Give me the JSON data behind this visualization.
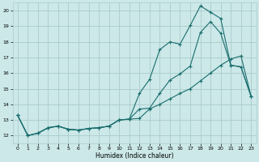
{
  "background_color": "#cce8e8",
  "grid_color": "#aacccc",
  "line_color": "#1a6e6e",
  "xlabel": "Humidex (Indice chaleur)",
  "xlim": [
    -0.5,
    23.5
  ],
  "ylim": [
    11.5,
    20.5
  ],
  "yticks": [
    12,
    13,
    14,
    15,
    16,
    17,
    18,
    19,
    20
  ],
  "xticks": [
    0,
    1,
    2,
    3,
    4,
    5,
    6,
    7,
    8,
    9,
    10,
    11,
    12,
    13,
    14,
    15,
    16,
    17,
    18,
    19,
    20,
    21,
    22,
    23
  ],
  "line1_x": [
    0,
    1,
    2,
    3,
    4,
    5,
    6,
    7,
    8,
    9,
    10,
    11,
    12,
    13,
    14,
    15,
    16,
    17,
    18,
    19,
    20,
    21,
    22,
    23
  ],
  "line1_y": [
    13.3,
    12.0,
    12.15,
    12.5,
    12.6,
    12.4,
    12.35,
    12.45,
    12.5,
    12.6,
    13.0,
    13.05,
    13.7,
    13.75,
    14.7,
    15.55,
    15.95,
    16.45,
    18.6,
    19.3,
    18.55,
    16.5,
    16.4,
    14.5
  ],
  "line2_x": [
    0,
    1,
    2,
    3,
    4,
    5,
    6,
    7,
    8,
    9,
    10,
    11,
    12,
    13,
    14,
    15,
    16,
    17,
    18,
    19,
    20,
    21,
    22,
    23
  ],
  "line2_y": [
    13.3,
    12.0,
    12.15,
    12.5,
    12.6,
    12.4,
    12.35,
    12.45,
    12.5,
    12.6,
    13.0,
    13.05,
    14.7,
    15.6,
    17.5,
    18.0,
    17.85,
    19.05,
    20.3,
    19.9,
    19.5,
    16.5,
    16.4,
    14.5
  ],
  "line3_x": [
    0,
    1,
    2,
    3,
    4,
    5,
    6,
    7,
    8,
    9,
    10,
    11,
    12,
    13,
    14,
    15,
    16,
    17,
    18,
    19,
    20,
    21,
    22,
    23
  ],
  "line3_y": [
    13.3,
    12.0,
    12.15,
    12.5,
    12.6,
    12.4,
    12.35,
    12.45,
    12.5,
    12.6,
    13.0,
    13.05,
    13.1,
    13.7,
    14.0,
    14.35,
    14.7,
    15.0,
    15.5,
    16.0,
    16.5,
    16.9,
    17.1,
    14.5
  ]
}
